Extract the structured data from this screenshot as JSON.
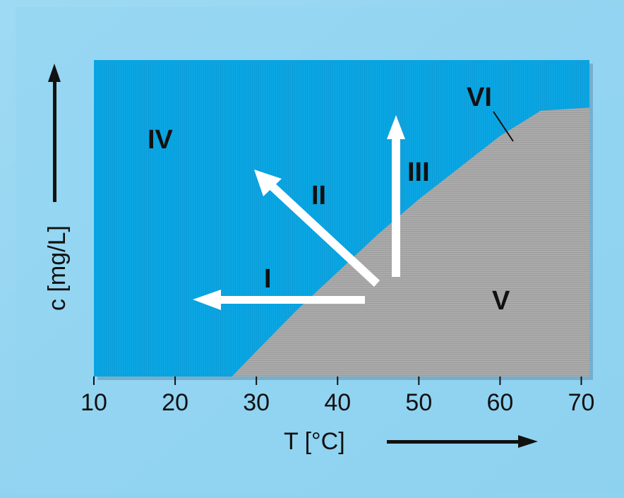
{
  "chart_data": {
    "type": "area",
    "title": "",
    "xlabel": "T [°C]",
    "ylabel": "c [mg/L]",
    "xlim": [
      10,
      71
    ],
    "x_ticks": [
      10,
      20,
      30,
      40,
      50,
      60,
      70
    ],
    "x_tick_labels": [
      "10",
      "20",
      "30",
      "40",
      "50",
      "60",
      "70"
    ],
    "y_ticks_shown": false,
    "boundary_curve": {
      "description": "solubility boundary between regions",
      "x": [
        27,
        30,
        35,
        40,
        45,
        50,
        55,
        60,
        65,
        71
      ],
      "y_relative": [
        0.0,
        0.08,
        0.21,
        0.33,
        0.45,
        0.56,
        0.66,
        0.76,
        0.84,
        0.85
      ]
    },
    "regions": [
      {
        "label": "IV",
        "color": "#0aa7e4"
      },
      {
        "label": "V",
        "color": "#a9a9a9"
      }
    ],
    "curve_label": "VI",
    "arrows": [
      {
        "label": "I",
        "direction": "left"
      },
      {
        "label": "II",
        "direction": "up-left"
      },
      {
        "label": "III",
        "direction": "up"
      }
    ],
    "colors": {
      "background": "#8fd3f0",
      "plot_blue": "#0aa7e4",
      "plot_gray": "#a9a9a9",
      "arrow": "#ffffff",
      "text": "#111111"
    }
  }
}
